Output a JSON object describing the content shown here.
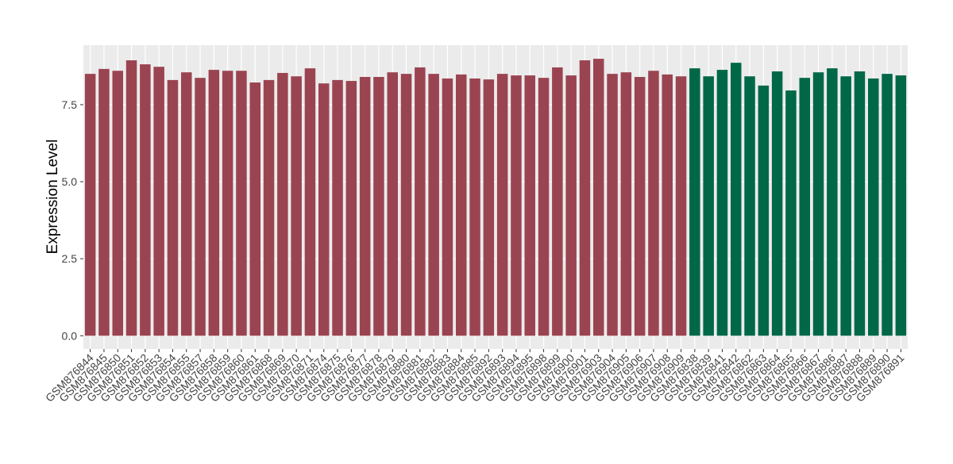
{
  "chart_data": {
    "type": "bar",
    "ylabel": "Expression Level",
    "categories": [
      "GSM876844",
      "GSM876845",
      "GSM876850",
      "GSM876851",
      "GSM876852",
      "GSM876853",
      "GSM876854",
      "GSM876855",
      "GSM876857",
      "GSM876858",
      "GSM876859",
      "GSM876860",
      "GSM876861",
      "GSM876868",
      "GSM876869",
      "GSM876870",
      "GSM876871",
      "GSM876874",
      "GSM876875",
      "GSM876876",
      "GSM876877",
      "GSM876878",
      "GSM876879",
      "GSM876880",
      "GSM876881",
      "GSM876882",
      "GSM876883",
      "GSM876884",
      "GSM876885",
      "GSM876892",
      "GSM876893",
      "GSM876894",
      "GSM876895",
      "GSM876898",
      "GSM876899",
      "GSM876900",
      "GSM876901",
      "GSM876903",
      "GSM876904",
      "GSM876905",
      "GSM876906",
      "GSM876907",
      "GSM876908",
      "GSM876909",
      "GSM876838",
      "GSM876839",
      "GSM876841",
      "GSM876842",
      "GSM876862",
      "GSM876863",
      "GSM876864",
      "GSM876865",
      "GSM876866",
      "GSM876867",
      "GSM876886",
      "GSM876887",
      "GSM876888",
      "GSM876889",
      "GSM876890",
      "GSM876891"
    ],
    "values": [
      8.5,
      8.66,
      8.6,
      8.94,
      8.81,
      8.73,
      8.3,
      8.55,
      8.37,
      8.63,
      8.6,
      8.6,
      8.22,
      8.3,
      8.53,
      8.42,
      8.68,
      8.19,
      8.3,
      8.27,
      8.4,
      8.4,
      8.55,
      8.5,
      8.71,
      8.5,
      8.35,
      8.48,
      8.35,
      8.32,
      8.5,
      8.45,
      8.45,
      8.37,
      8.71,
      8.45,
      8.94,
      8.99,
      8.5,
      8.55,
      8.4,
      8.6,
      8.48,
      8.42,
      8.68,
      8.42,
      8.63,
      8.86,
      8.42,
      8.12,
      8.58,
      7.96,
      8.37,
      8.55,
      8.68,
      8.42,
      8.58,
      8.35,
      8.5,
      8.45
    ],
    "colors": [
      "#9b4451",
      "#9b4451",
      "#9b4451",
      "#9b4451",
      "#9b4451",
      "#9b4451",
      "#9b4451",
      "#9b4451",
      "#9b4451",
      "#9b4451",
      "#9b4451",
      "#9b4451",
      "#9b4451",
      "#9b4451",
      "#9b4451",
      "#9b4451",
      "#9b4451",
      "#9b4451",
      "#9b4451",
      "#9b4451",
      "#9b4451",
      "#9b4451",
      "#9b4451",
      "#9b4451",
      "#9b4451",
      "#9b4451",
      "#9b4451",
      "#9b4451",
      "#9b4451",
      "#9b4451",
      "#9b4451",
      "#9b4451",
      "#9b4451",
      "#9b4451",
      "#9b4451",
      "#9b4451",
      "#9b4451",
      "#9b4451",
      "#9b4451",
      "#9b4451",
      "#9b4451",
      "#9b4451",
      "#9b4451",
      "#9b4451",
      "#006847",
      "#006847",
      "#006847",
      "#006847",
      "#006847",
      "#006847",
      "#006847",
      "#006847",
      "#006847",
      "#006847",
      "#006847",
      "#006847",
      "#006847",
      "#006847",
      "#006847",
      "#006847"
    ],
    "ylim": [
      -0.43,
      9.43
    ],
    "yticks": [
      {
        "value": 0,
        "label": "0.0"
      },
      2.5,
      {
        "value": 5,
        "label": "5.0"
      },
      7.5
    ],
    "grid": true
  }
}
